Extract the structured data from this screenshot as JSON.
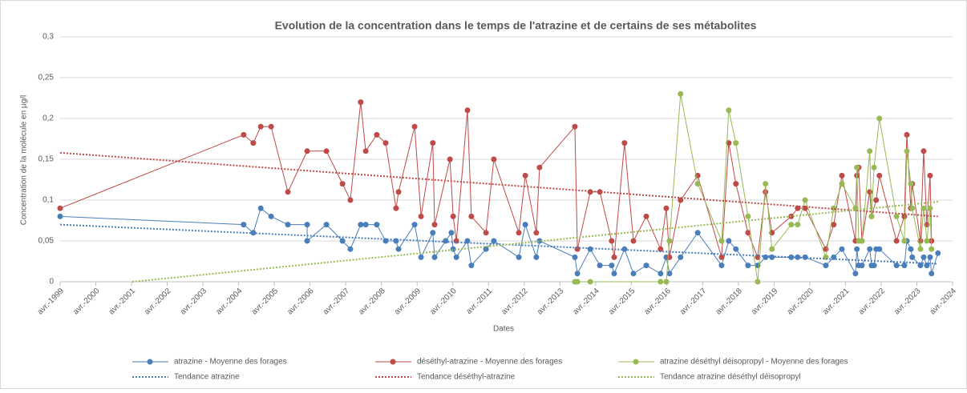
{
  "chart_data": {
    "type": "line",
    "title": "Evolution de la concentration dans le temps de l'atrazine et de certains de ses métabolites",
    "x_label": "Dates",
    "y_label": "Concentration de la molécule en µg/l",
    "xlim": [
      1999.25,
      2024.25
    ],
    "xticks": [
      {
        "value": 1999.25,
        "label": "avr.-1999"
      },
      {
        "value": 2000.25,
        "label": "avr.-2000"
      },
      {
        "value": 2001.25,
        "label": "avr.-2001"
      },
      {
        "value": 2002.25,
        "label": "avr.-2002"
      },
      {
        "value": 2003.25,
        "label": "avr.-2003"
      },
      {
        "value": 2004.25,
        "label": "avr.-2004"
      },
      {
        "value": 2005.25,
        "label": "avr.-2005"
      },
      {
        "value": 2006.25,
        "label": "avr.-2006"
      },
      {
        "value": 2007.25,
        "label": "avr.-2007"
      },
      {
        "value": 2008.25,
        "label": "avr.-2008"
      },
      {
        "value": 2009.25,
        "label": "avr.-2009"
      },
      {
        "value": 2010.25,
        "label": "avr.-2010"
      },
      {
        "value": 2011.25,
        "label": "avr.-2011"
      },
      {
        "value": 2012.25,
        "label": "avr.-2012"
      },
      {
        "value": 2013.25,
        "label": "avr.-2013"
      },
      {
        "value": 2014.25,
        "label": "avr.-2014"
      },
      {
        "value": 2015.25,
        "label": "avr.-2015"
      },
      {
        "value": 2016.25,
        "label": "avr.-2016"
      },
      {
        "value": 2017.25,
        "label": "avr.-2017"
      },
      {
        "value": 2018.25,
        "label": "avr.-2018"
      },
      {
        "value": 2019.25,
        "label": "avr.-2019"
      },
      {
        "value": 2020.25,
        "label": "avr.-2020"
      },
      {
        "value": 2021.25,
        "label": "avr.-2021"
      },
      {
        "value": 2022.25,
        "label": "avr.-2022"
      },
      {
        "value": 2023.25,
        "label": "avr.-2023"
      },
      {
        "value": 2024.25,
        "label": "avr.-2024"
      }
    ],
    "ylim": [
      0,
      0.3
    ],
    "yticks": [
      0,
      {
        "value": 0.05,
        "label": "0,05"
      },
      {
        "value": 0.1,
        "label": "0,1"
      },
      {
        "value": 0.15,
        "label": "0,15"
      },
      {
        "value": 0.2,
        "label": "0,2"
      },
      {
        "value": 0.25,
        "label": "0,25"
      },
      {
        "value": 0.3,
        "label": "0,3"
      }
    ],
    "grid": true,
    "legend": "bottom",
    "series": [
      {
        "name": "atrazine - Moyenne des forages",
        "color": "#4a7ebb",
        "marker": true,
        "x": [
          1999.25,
          2004.39,
          2004.66,
          2004.87,
          2005.16,
          2005.63,
          2006.17,
          2006.17,
          2006.71,
          2007.16,
          2007.38,
          2007.67,
          2007.81,
          2008.12,
          2008.37,
          2008.66,
          2008.73,
          2009.18,
          2009.36,
          2009.69,
          2009.74,
          2010.05,
          2010.21,
          2010.26,
          2010.35,
          2010.66,
          2010.77,
          2011.18,
          2011.4,
          2012.1,
          2012.28,
          2012.59,
          2012.68,
          2013.67,
          2013.74,
          2014.1,
          2014.37,
          2014.7,
          2014.77,
          2015.06,
          2015.31,
          2015.67,
          2016.07,
          2016.23,
          2016.32,
          2016.63,
          2017.11,
          2017.78,
          2017.98,
          2018.18,
          2018.52,
          2018.79,
          2019.01,
          2019.19,
          2019.73,
          2019.91,
          2020.12,
          2020.7,
          2020.92,
          2021.15,
          2021.53,
          2021.57,
          2021.62,
          2021.71,
          2021.93,
          2021.98,
          2022.05,
          2022.11,
          2022.2,
          2022.68,
          2022.9,
          2022.97,
          2023.08,
          2023.12,
          2023.35,
          2023.44,
          2023.53,
          2023.62,
          2023.66,
          2023.84
        ],
        "values": [
          0.08,
          0.07,
          0.06,
          0.09,
          0.08,
          0.07,
          0.07,
          0.05,
          0.07,
          0.05,
          0.04,
          0.07,
          0.07,
          0.07,
          0.05,
          0.05,
          0.04,
          0.07,
          0.03,
          0.06,
          0.03,
          0.05,
          0.06,
          0.04,
          0.03,
          0.05,
          0.02,
          0.04,
          0.05,
          0.03,
          0.07,
          0.03,
          0.05,
          0.03,
          0.01,
          0.04,
          0.02,
          0.02,
          0.01,
          0.04,
          0.01,
          0.02,
          0.01,
          0.03,
          0.01,
          0.03,
          0.06,
          0.02,
          0.05,
          0.04,
          0.02,
          0.02,
          0.03,
          0.03,
          0.03,
          0.03,
          0.03,
          0.02,
          0.03,
          0.04,
          0.01,
          0.04,
          0.02,
          0.02,
          0.04,
          0.02,
          0.02,
          0.04,
          0.04,
          0.02,
          0.02,
          0.05,
          0.04,
          0.03,
          0.02,
          0.03,
          0.02,
          0.03,
          0.01,
          0.035
        ]
      },
      {
        "name": "déséthyl-atrazine - Moyenne des forages",
        "color": "#be4b48",
        "marker": true,
        "x": [
          1999.25,
          2004.39,
          2004.66,
          2004.87,
          2005.16,
          2005.63,
          2006.17,
          2006.71,
          2007.16,
          2007.38,
          2007.67,
          2007.81,
          2008.12,
          2008.37,
          2008.66,
          2008.73,
          2009.18,
          2009.36,
          2009.69,
          2009.74,
          2010.17,
          2010.26,
          2010.35,
          2010.66,
          2010.77,
          2011.18,
          2011.4,
          2012.1,
          2012.28,
          2012.59,
          2012.68,
          2013.67,
          2013.74,
          2014.1,
          2014.37,
          2014.7,
          2014.77,
          2015.06,
          2015.31,
          2015.67,
          2016.07,
          2016.23,
          2016.32,
          2016.63,
          2017.11,
          2017.78,
          2017.98,
          2018.18,
          2018.52,
          2018.79,
          2019.01,
          2019.19,
          2019.73,
          2019.91,
          2020.12,
          2020.7,
          2020.92,
          2021.15,
          2021.53,
          2021.57,
          2021.62,
          2021.71,
          2021.93,
          2021.98,
          2022.11,
          2022.2,
          2022.68,
          2022.9,
          2022.97,
          2023.08,
          2023.12,
          2023.35,
          2023.44,
          2023.53,
          2023.62,
          2023.66
        ],
        "values": [
          0.09,
          0.18,
          0.17,
          0.19,
          0.19,
          0.11,
          0.16,
          0.16,
          0.12,
          0.1,
          0.22,
          0.16,
          0.18,
          0.17,
          0.09,
          0.11,
          0.19,
          0.08,
          0.17,
          0.07,
          0.15,
          0.08,
          0.05,
          0.21,
          0.08,
          0.06,
          0.15,
          0.06,
          0.13,
          0.06,
          0.14,
          0.19,
          0.04,
          0.11,
          0.11,
          0.05,
          0.03,
          0.17,
          0.05,
          0.08,
          0.04,
          0.09,
          0.03,
          0.1,
          0.13,
          0.03,
          0.17,
          0.12,
          0.06,
          0.03,
          0.11,
          0.06,
          0.08,
          0.09,
          0.09,
          0.04,
          0.07,
          0.13,
          0.05,
          0.13,
          0.14,
          0.05,
          0.11,
          0.08,
          0.1,
          0.13,
          0.05,
          0.08,
          0.18,
          0.09,
          0.12,
          0.05,
          0.16,
          0.07,
          0.13,
          0.05
        ]
      },
      {
        "name": "atrazine déséthyl déisopropyl - Moyenne des forages",
        "color": "#98b954",
        "marker": true,
        "x": [
          2013.67,
          2013.74,
          2014.1,
          2016.07,
          2016.23,
          2016.32,
          2016.63,
          2017.11,
          2017.78,
          2017.98,
          2018.18,
          2018.52,
          2018.79,
          2019.01,
          2019.19,
          2019.73,
          2019.91,
          2020.12,
          2020.7,
          2020.92,
          2021.15,
          2021.53,
          2021.57,
          2021.62,
          2021.71,
          2021.93,
          2021.98,
          2022.05,
          2022.2,
          2022.68,
          2022.9,
          2022.97,
          2023.08,
          2023.12,
          2023.35,
          2023.44,
          2023.53,
          2023.62,
          2023.66
        ],
        "values": [
          0,
          0,
          0,
          0,
          0,
          0.05,
          0.23,
          0.12,
          0.05,
          0.21,
          0.17,
          0.08,
          0,
          0.12,
          0.04,
          0.07,
          0.07,
          0.1,
          0.03,
          0.09,
          0.12,
          0.09,
          0.14,
          0.05,
          0.05,
          0.16,
          0.08,
          0.14,
          0.2,
          0.08,
          0.05,
          0.16,
          0.12,
          0.09,
          0.04,
          0.09,
          0.05,
          0.09,
          0.04
        ]
      },
      {
        "name": "Tendance atrazine",
        "color": "#4a7ebb",
        "style": "dotted",
        "x": [
          1999.25,
          2023.84
        ],
        "values": [
          0.07,
          0.022
        ]
      },
      {
        "name": "Tendance déséthyl-atrazine",
        "color": "#be4b48",
        "style": "dotted",
        "x": [
          1999.25,
          2023.84
        ],
        "values": [
          0.158,
          0.08
        ]
      },
      {
        "name": "Tendance atrazine déséthyl déisopropyl",
        "color": "#98b954",
        "style": "dotted",
        "x": [
          2001.27,
          2023.84
        ],
        "values": [
          0,
          0.098
        ]
      }
    ]
  }
}
